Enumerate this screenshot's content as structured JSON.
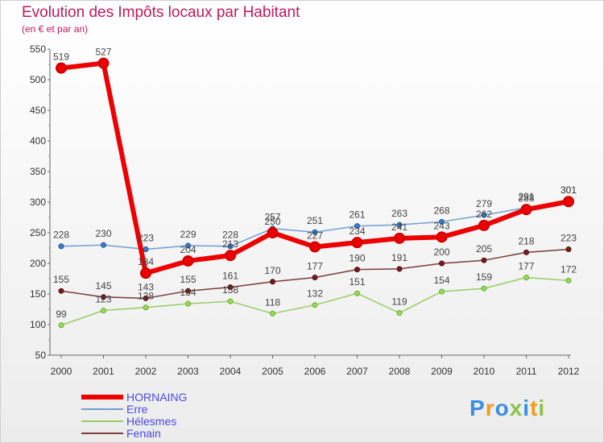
{
  "header": {
    "title": "Evolution des Impôts locaux par Habitant",
    "subtitle": "(en € et par an)"
  },
  "logo": {
    "text": "Proxiti"
  },
  "chart_data": {
    "type": "line",
    "title": "Evolution des Impôts locaux par Habitant",
    "subtitle": "(en € et par an)",
    "xlabel": "",
    "ylabel": "",
    "x": [
      "2000",
      "2001",
      "2002",
      "2003",
      "2004",
      "2005",
      "2006",
      "2007",
      "2008",
      "2009",
      "2010",
      "2011",
      "2012"
    ],
    "ylim": [
      50,
      550
    ],
    "yticks": [
      50,
      100,
      150,
      200,
      250,
      300,
      350,
      400,
      450,
      500,
      550
    ],
    "grid": false,
    "legend": "bottom-left",
    "series": [
      {
        "name": "HORNAING",
        "color": "#ee0000",
        "values": [
          519,
          527,
          184,
          204,
          213,
          250,
          227,
          234,
          241,
          243,
          262,
          288,
          301
        ]
      },
      {
        "name": "Erre",
        "color": "#6fa0d2",
        "values": [
          228,
          230,
          223,
          229,
          228,
          257,
          251,
          261,
          263,
          268,
          279,
          291,
          301
        ]
      },
      {
        "name": "Hélesmes",
        "color": "#99cc66",
        "values": [
          99,
          123,
          128,
          134,
          138,
          118,
          132,
          151,
          119,
          154,
          159,
          177,
          172
        ]
      },
      {
        "name": "Fenain",
        "color": "#7b3b3b",
        "values": [
          155,
          145,
          143,
          155,
          161,
          170,
          177,
          190,
          191,
          200,
          205,
          218,
          223
        ]
      }
    ]
  }
}
